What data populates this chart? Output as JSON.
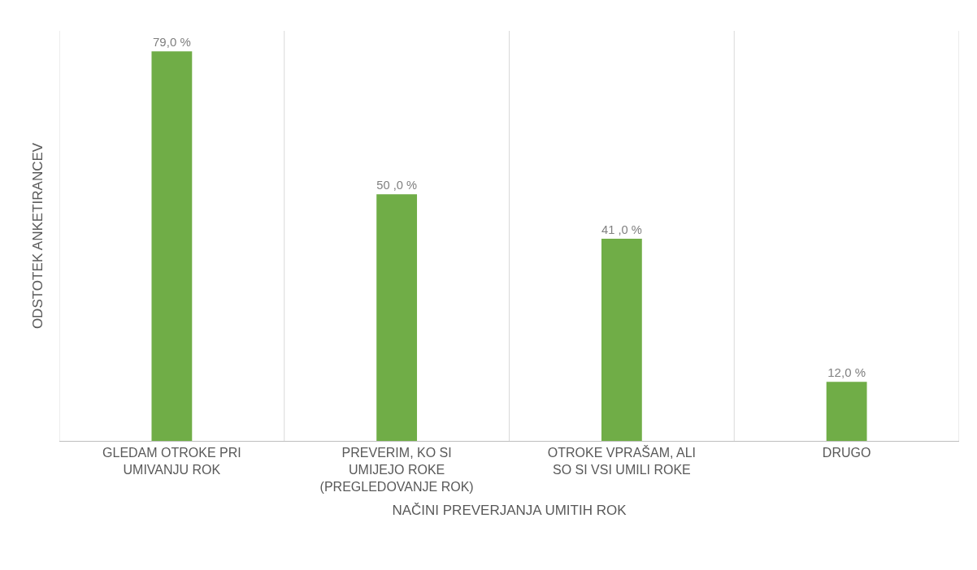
{
  "chart_data": {
    "type": "bar",
    "xlabel": "NAČINI PREVERJANJA UMITIH ROK",
    "ylabel": "ODSTOTEK ANKETIRANCEV",
    "categories": [
      "GLEDAM OTROKE PRI\nUMIVANJU ROK",
      "PREVERIM, KO SI\nUMIJEJO ROKE\n(PREGLEDOVANJE ROK)",
      "OTROKE VPRAŠAM, ALI\nSO SI VSI UMILI ROKE",
      "DRUGO"
    ],
    "values": [
      79.0,
      50.0,
      41.0,
      12.0
    ],
    "value_labels": [
      "79,0 %",
      "50 ,0 %",
      "41 ,0 %",
      "12,0 %"
    ],
    "color": "#70ad47",
    "grid": "x"
  }
}
